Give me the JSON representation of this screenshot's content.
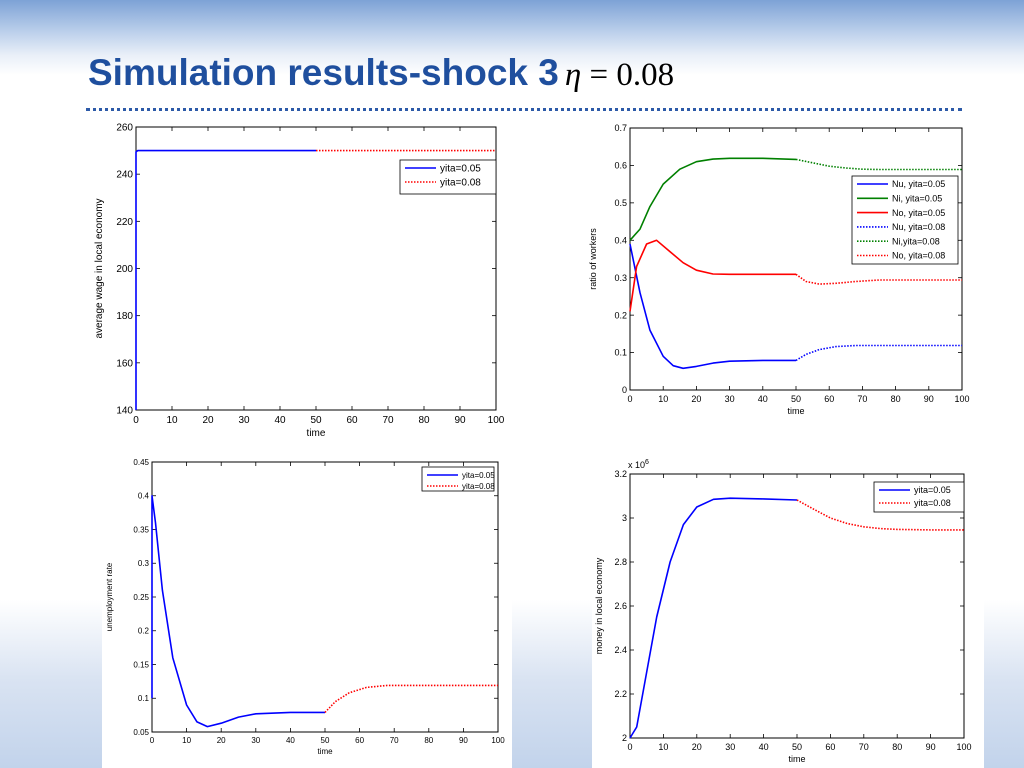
{
  "slide": {
    "title": "Simulation results-shock 3",
    "title_math_symbol": "η",
    "title_math_rest": " = 0.08"
  },
  "colors": {
    "title": "#1f4f9e",
    "rule": "#2d5aa8",
    "blue": "#0000ff",
    "green": "#008000",
    "red": "#ff0000"
  },
  "chart_data": [
    {
      "id": "wage",
      "type": "line",
      "xlabel": "time",
      "ylabel": "average wage in local economy",
      "xlim": [
        0,
        100
      ],
      "ylim": [
        140,
        260
      ],
      "xticks": [
        "0",
        "10",
        "20",
        "30",
        "40",
        "50",
        "60",
        "70",
        "80",
        "90",
        "100"
      ],
      "yticks": [
        "140",
        "160",
        "180",
        "200",
        "220",
        "240",
        "260"
      ],
      "legend_position": "top-right",
      "series": [
        {
          "name": "yita=0.05",
          "color": "#0000ff",
          "dash": "solid",
          "x": [
            0,
            0,
            0.5,
            50
          ],
          "y": [
            140,
            249.5,
            250,
            250
          ]
        },
        {
          "name": "yita=0.08",
          "color": "#ff0000",
          "dash": "dotted",
          "x": [
            50,
            100
          ],
          "y": [
            250,
            250
          ]
        }
      ]
    },
    {
      "id": "ratio",
      "type": "line",
      "xlabel": "time",
      "ylabel": "ratio of workers",
      "xlim": [
        0,
        100
      ],
      "ylim": [
        0,
        0.7
      ],
      "xticks": [
        "0",
        "10",
        "20",
        "30",
        "40",
        "50",
        "60",
        "70",
        "80",
        "90",
        "100"
      ],
      "yticks": [
        "0",
        "0.1",
        "0.2",
        "0.3",
        "0.4",
        "0.5",
        "0.6",
        "0.7"
      ],
      "legend_position": "top-right",
      "series": [
        {
          "name": "Nu, yita=0.05",
          "color": "#0000ff",
          "dash": "solid",
          "x": [
            0,
            3,
            6,
            10,
            13,
            16,
            20,
            25,
            30,
            40,
            50
          ],
          "y": [
            0.39,
            0.26,
            0.16,
            0.09,
            0.065,
            0.058,
            0.063,
            0.072,
            0.077,
            0.079,
            0.079
          ]
        },
        {
          "name": "Ni, yita=0.05",
          "color": "#008000",
          "dash": "solid",
          "x": [
            0,
            3,
            6,
            10,
            15,
            20,
            25,
            30,
            40,
            50
          ],
          "y": [
            0.4,
            0.43,
            0.49,
            0.55,
            0.59,
            0.61,
            0.617,
            0.619,
            0.619,
            0.616
          ]
        },
        {
          "name": "No, yita=0.05",
          "color": "#ff0000",
          "dash": "solid",
          "x": [
            0,
            2,
            5,
            8,
            12,
            16,
            20,
            25,
            30,
            40,
            50
          ],
          "y": [
            0.21,
            0.33,
            0.39,
            0.4,
            0.37,
            0.34,
            0.32,
            0.31,
            0.309,
            0.309,
            0.309
          ]
        },
        {
          "name": "Nu, yita=0.08",
          "color": "#0000ff",
          "dash": "dotted",
          "x": [
            50,
            53,
            57,
            62,
            68,
            75,
            100
          ],
          "y": [
            0.079,
            0.095,
            0.108,
            0.116,
            0.119,
            0.119,
            0.119
          ]
        },
        {
          "name": "Ni,yita=0.08",
          "color": "#008000",
          "dash": "dotted",
          "x": [
            50,
            55,
            60,
            65,
            70,
            75,
            100
          ],
          "y": [
            0.616,
            0.607,
            0.598,
            0.593,
            0.59,
            0.589,
            0.589
          ]
        },
        {
          "name": "No, yita=0.08",
          "color": "#ff0000",
          "dash": "dotted",
          "x": [
            50,
            53,
            57,
            62,
            68,
            75,
            100
          ],
          "y": [
            0.309,
            0.29,
            0.283,
            0.285,
            0.29,
            0.294,
            0.294
          ]
        }
      ]
    },
    {
      "id": "unemployment",
      "type": "line",
      "xlabel": "time",
      "ylabel": "unemployment rate",
      "xlim": [
        0,
        100
      ],
      "ylim": [
        0.05,
        0.45
      ],
      "xticks": [
        "0",
        "10",
        "20",
        "30",
        "40",
        "50",
        "60",
        "70",
        "80",
        "90",
        "100"
      ],
      "yticks": [
        "0.05",
        "0.1",
        "0.15",
        "0.2",
        "0.25",
        "0.3",
        "0.35",
        "0.4",
        "0.45"
      ],
      "legend_position": "top-right",
      "series": [
        {
          "name": "yita=0.05",
          "color": "#0000ff",
          "dash": "solid",
          "x": [
            0,
            0,
            1,
            3,
            6,
            10,
            13,
            16,
            20,
            25,
            30,
            40,
            50
          ],
          "y": [
            0.1,
            0.4,
            0.36,
            0.26,
            0.16,
            0.09,
            0.065,
            0.058,
            0.063,
            0.072,
            0.077,
            0.079,
            0.079
          ]
        },
        {
          "name": "yita=0.08",
          "color": "#ff0000",
          "dash": "dotted",
          "x": [
            50,
            53,
            57,
            62,
            68,
            75,
            100
          ],
          "y": [
            0.079,
            0.095,
            0.108,
            0.116,
            0.119,
            0.119,
            0.119
          ]
        }
      ]
    },
    {
      "id": "money",
      "type": "line",
      "xlabel": "time",
      "ylabel": "money in local economy",
      "yscale_label": "x 10",
      "yscale_exponent": "6",
      "xlim": [
        0,
        100
      ],
      "ylim": [
        2,
        3.2
      ],
      "xticks": [
        "0",
        "10",
        "20",
        "30",
        "40",
        "50",
        "60",
        "70",
        "80",
        "90",
        "100"
      ],
      "yticks": [
        "2",
        "2.2",
        "2.4",
        "2.6",
        "2.8",
        "3",
        "3.2"
      ],
      "legend_position": "top-right",
      "series": [
        {
          "name": "yita=0.05",
          "color": "#0000ff",
          "dash": "solid",
          "x": [
            0,
            2,
            5,
            8,
            12,
            16,
            20,
            25,
            30,
            40,
            50
          ],
          "y": [
            2.0,
            2.05,
            2.3,
            2.55,
            2.8,
            2.97,
            3.05,
            3.085,
            3.09,
            3.087,
            3.082
          ]
        },
        {
          "name": "yita=0.08",
          "color": "#ff0000",
          "dash": "dotted",
          "x": [
            50,
            55,
            60,
            65,
            70,
            75,
            80,
            90,
            100
          ],
          "y": [
            3.082,
            3.04,
            3.0,
            2.975,
            2.96,
            2.952,
            2.948,
            2.946,
            2.946
          ]
        }
      ]
    }
  ]
}
